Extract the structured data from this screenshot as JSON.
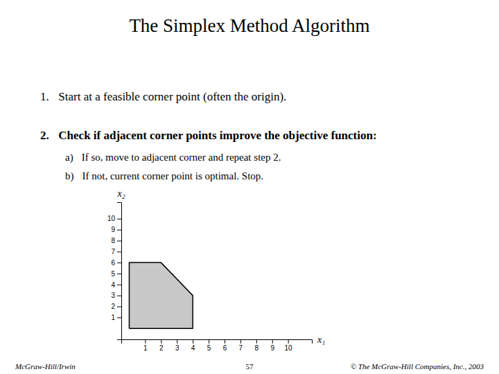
{
  "chart_data": {
    "type": "polygon",
    "title": "The Simplex Method Algorithm",
    "annotations": [
      {
        "num": "1.",
        "text": "Start at a feasible corner point (often the origin)."
      },
      {
        "num": "2.",
        "text": "Check if adjacent corner points improve the objective function:"
      },
      {
        "num": "a)",
        "text": "If so, move to adjacent corner and repeat step 2."
      },
      {
        "num": "b)",
        "text": "If not, current corner point is optimal. Stop."
      }
    ],
    "footer": [
      "McGraw-Hill/Irwin",
      "57",
      "© The McGraw-Hill Companies, Inc., 2003"
    ],
    "x": [
      0,
      0,
      2,
      4,
      4,
      0
    ],
    "values": [
      0,
      6,
      6,
      3,
      0,
      0
    ],
    "color": "#c8c8c8",
    "x_label": "x₁",
    "y_label": "x₂",
    "xlim": [
      -0.5,
      11.5
    ],
    "ylim": [
      -1.0,
      11.5
    ],
    "xticks": [
      1,
      2,
      3,
      4,
      5,
      6,
      7,
      8,
      9,
      10
    ],
    "yticks": [
      1,
      2,
      3,
      4,
      5,
      6,
      7,
      8,
      9,
      10
    ],
    "grid": false
  }
}
